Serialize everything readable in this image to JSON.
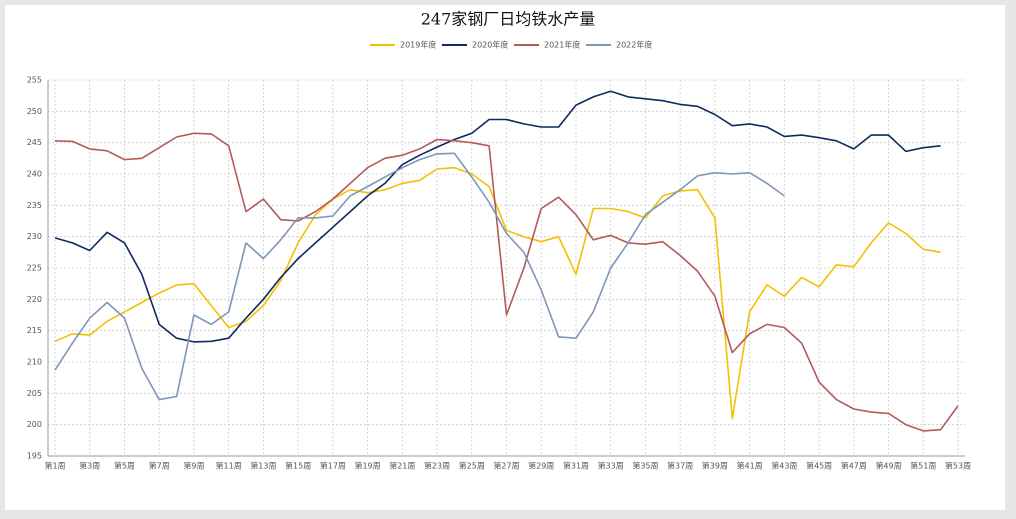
{
  "chart_data": {
    "type": "line",
    "title": "247家钢厂日均铁水产量",
    "categories": [
      "第1周",
      null,
      "第3周",
      null,
      "第5周",
      null,
      "第7周",
      null,
      "第9周",
      null,
      "第11周",
      null,
      "第13周",
      null,
      "第15周",
      null,
      "第17周",
      null,
      "第19周",
      null,
      "第21周",
      null,
      "第23周",
      null,
      "第25周",
      null,
      "第27周",
      null,
      "第29周",
      null,
      "第31周",
      null,
      "第33周",
      null,
      "第35周",
      null,
      "第37周",
      null,
      "第39周",
      null,
      "第41周",
      null,
      "第43周",
      null,
      "第45周",
      null,
      "第47周",
      null,
      "第49周",
      null,
      "第51周",
      null,
      "第53周"
    ],
    "ylim": [
      195,
      255
    ],
    "yticks": [
      195,
      200,
      205,
      210,
      215,
      220,
      225,
      230,
      235,
      240,
      245,
      250,
      255
    ],
    "grid": true,
    "series": [
      {
        "name": "2019年度",
        "color": "#f5c000",
        "values": [
          213.3,
          214.5,
          214.3,
          216.5,
          218,
          219.5,
          221,
          222.3,
          222.5,
          219,
          215.5,
          216.5,
          219,
          223,
          229,
          233.5,
          236,
          237.5,
          237,
          237.5,
          238.5,
          239,
          240.8,
          241,
          240,
          238,
          231,
          230,
          229.2,
          230,
          224,
          234.5,
          234.5,
          234,
          233,
          236.5,
          237.3,
          237.5,
          233,
          201,
          218,
          222.3,
          220.5,
          223.5,
          222,
          225.5,
          225.2,
          229,
          232.2,
          230.5,
          228,
          227.5,
          null
        ]
      },
      {
        "name": "2020年度",
        "color": "#0e2a5e",
        "values": [
          229.8,
          229,
          227.8,
          230.7,
          229,
          224,
          216,
          213.8,
          213.2,
          213.3,
          213.8,
          217,
          220,
          223.5,
          226.5,
          229,
          231.5,
          234,
          236.5,
          238.5,
          241.5,
          243,
          244.3,
          245.5,
          246.5,
          248.7,
          248.7,
          248,
          247.5,
          247.5,
          251,
          252.3,
          253.2,
          252.3,
          252,
          251.7,
          251.1,
          250.8,
          249.5,
          247.7,
          248,
          247.5,
          246,
          246.2,
          245.8,
          245.3,
          244,
          246.2,
          246.2,
          243.6,
          244.2,
          244.5,
          null
        ]
      },
      {
        "name": "2021年度",
        "color": "#b5595a",
        "values": [
          245.3,
          245.2,
          244,
          243.7,
          242.3,
          242.5,
          244.2,
          245.9,
          246.5,
          246.4,
          244.5,
          234,
          236,
          232.7,
          232.5,
          234,
          236,
          238.5,
          241,
          242.5,
          243,
          244,
          245.5,
          245.3,
          245,
          244.5,
          217.5,
          225,
          234.5,
          236.3,
          233.5,
          229.5,
          230.2,
          229,
          228.8,
          229.2,
          227,
          224.5,
          220.5,
          211.5,
          214.5,
          216,
          215.5,
          213,
          206.8,
          204,
          202.5,
          202,
          201.8,
          200,
          199,
          199.2,
          203
        ]
      },
      {
        "name": "2022年度",
        "color": "#7f96b8",
        "values": [
          208.7,
          213,
          217,
          219.5,
          217,
          209,
          204,
          204.5,
          217.5,
          216,
          218,
          229,
          226.5,
          229.5,
          233,
          233,
          233.3,
          236.5,
          238,
          239.5,
          241,
          242.3,
          243.2,
          243.3,
          239.5,
          235.5,
          230.5,
          227.5,
          221.5,
          214,
          213.8,
          218,
          225,
          229,
          233.5,
          235.5,
          237.5,
          239.7,
          240.2,
          240,
          240.2,
          238.5,
          236.5,
          null,
          null,
          null,
          null,
          null,
          null,
          null,
          null,
          null,
          null
        ]
      }
    ]
  }
}
